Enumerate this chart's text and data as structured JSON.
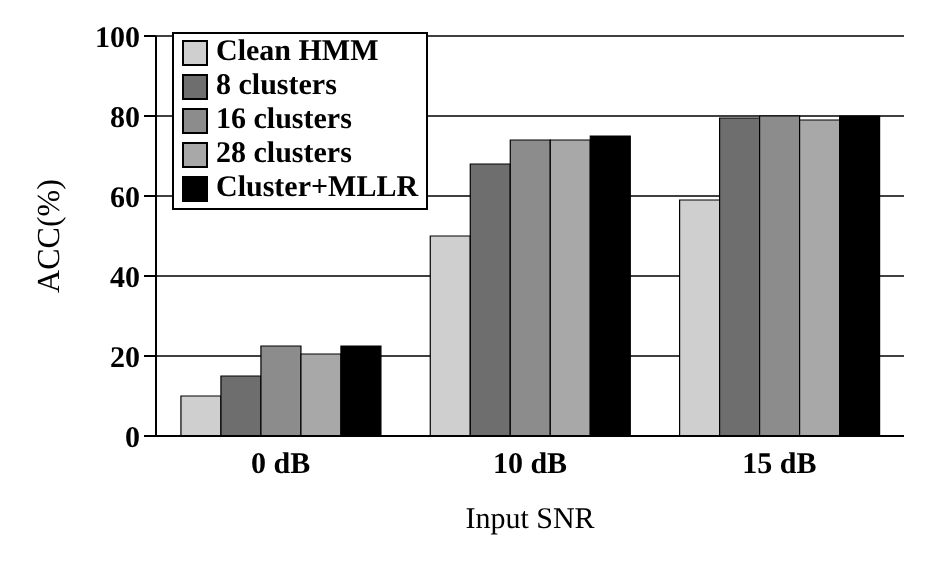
{
  "chart_data": {
    "type": "bar",
    "xlabel": "Input SNR",
    "ylabel": "ACC(%)",
    "categories": [
      "0 dB",
      "10 dB",
      "15 dB"
    ],
    "series": [
      {
        "name": "Clean HMM",
        "color": "#cfcfcf",
        "values": [
          10,
          50,
          59
        ]
      },
      {
        "name": "8 clusters",
        "color": "#6e6e6e",
        "values": [
          15,
          68,
          79.5
        ]
      },
      {
        "name": "16 clusters",
        "color": "#8c8c8c",
        "values": [
          22.5,
          74,
          80
        ]
      },
      {
        "name": "28 clusters",
        "color": "#a8a8a8",
        "values": [
          20.5,
          74,
          79
        ]
      },
      {
        "name": "Cluster+MLLR",
        "color": "#000000",
        "values": [
          22.5,
          75,
          80
        ]
      }
    ],
    "ylim": [
      0,
      100
    ],
    "yticks": [
      0,
      20,
      40,
      60,
      80,
      100
    ],
    "grid": "y",
    "legend": "top left"
  }
}
